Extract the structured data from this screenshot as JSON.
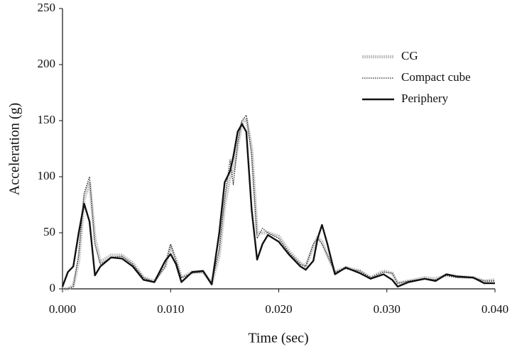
{
  "chart_data": {
    "type": "line",
    "x_label": "Time (sec)",
    "y_label": "Acceleration (g)",
    "xlim": [
      0,
      0.04
    ],
    "ylim": [
      0,
      250
    ],
    "xticks": [
      {
        "value": 0,
        "label": "0.000"
      },
      {
        "value": 0.01,
        "label": "0.010"
      },
      {
        "value": 0.02,
        "label": "0.020"
      },
      {
        "value": 0.03,
        "label": "0.030"
      },
      {
        "value": 0.04,
        "label": "0.040"
      }
    ],
    "yticks": [
      0,
      50,
      100,
      150,
      200,
      250
    ],
    "legend": "upper right",
    "x": [
      0,
      0.0005,
      0.001,
      0.0015,
      0.002,
      0.0025,
      0.003,
      0.0035,
      0.0045,
      0.0055,
      0.0065,
      0.0075,
      0.0085,
      0.0095,
      0.01,
      0.0105,
      0.011,
      0.012,
      0.013,
      0.0138,
      0.0145,
      0.015,
      0.0155,
      0.0158,
      0.0162,
      0.0166,
      0.017,
      0.0175,
      0.018,
      0.0185,
      0.019,
      0.02,
      0.021,
      0.022,
      0.0225,
      0.0232,
      0.0236,
      0.024,
      0.0245,
      0.0252,
      0.0262,
      0.0275,
      0.0285,
      0.0297,
      0.0305,
      0.031,
      0.032,
      0.0335,
      0.0345,
      0.0355,
      0.0365,
      0.038,
      0.039,
      0.04
    ],
    "series": [
      {
        "name": "CG",
        "color": "#c4c4c4",
        "style": "thick",
        "values": [
          0,
          0,
          3,
          25,
          80,
          95,
          45,
          24,
          30,
          30,
          23,
          10,
          7,
          20,
          38,
          26,
          10,
          15,
          15,
          5,
          30,
          75,
          100,
          105,
          128,
          148,
          152,
          125,
          50,
          50,
          50,
          47,
          33,
          23,
          20,
          38,
          46,
          42,
          30,
          15,
          19,
          16,
          10,
          16,
          14,
          5,
          7,
          10,
          9,
          12,
          11,
          10,
          7,
          8
        ]
      },
      {
        "name": "Compact cube",
        "color": "#222222",
        "style": "dotted",
        "values": [
          0,
          0,
          2,
          30,
          85,
          100,
          40,
          22,
          28,
          29,
          22,
          10,
          6,
          20,
          40,
          25,
          10,
          14,
          15,
          5,
          35,
          80,
          115,
          93,
          130,
          150,
          155,
          120,
          45,
          54,
          50,
          45,
          32,
          22,
          20,
          40,
          45,
          40,
          30,
          15,
          18,
          16,
          10,
          15,
          14,
          5,
          7,
          9,
          8,
          12,
          10,
          10,
          7,
          7
        ]
      },
      {
        "name": "Periphery",
        "color": "#111111",
        "style": "solid",
        "values": [
          2,
          15,
          20,
          50,
          76,
          60,
          12,
          20,
          28,
          27,
          20,
          8,
          6,
          25,
          31,
          22,
          6,
          15,
          16,
          4,
          50,
          95,
          105,
          118,
          140,
          147,
          140,
          70,
          26,
          40,
          48,
          42,
          30,
          20,
          17,
          25,
          45,
          57,
          40,
          13,
          19,
          14,
          9,
          13,
          8,
          2,
          6,
          9,
          7,
          13,
          11,
          10,
          5,
          5
        ]
      }
    ]
  }
}
